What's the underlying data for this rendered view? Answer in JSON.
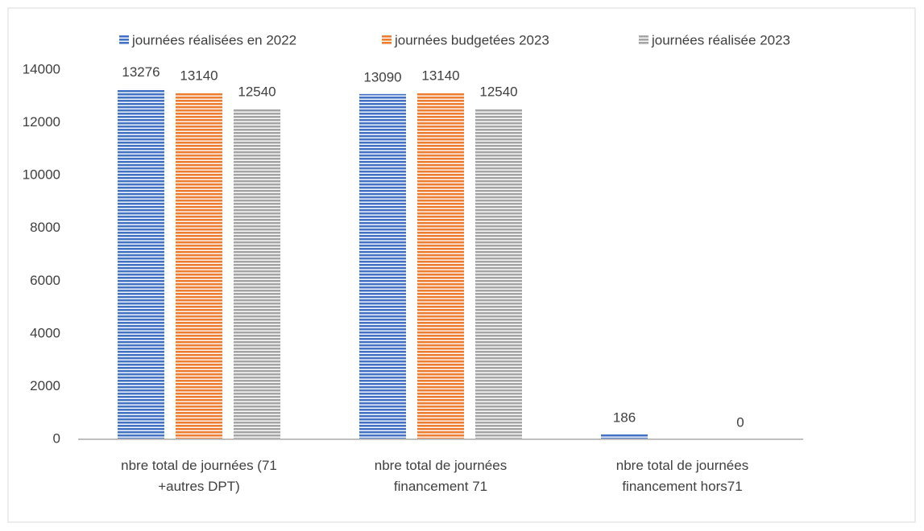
{
  "chart_data": {
    "type": "bar",
    "categories": [
      "nbre total de journées (71 +autres DPT)",
      "nbre total de journées financement 71",
      "nbre total de journées financement hors71"
    ],
    "series": [
      {
        "name": "journées réalisées en 2022",
        "color": "#4472c4",
        "values": [
          13276,
          13090,
          186
        ]
      },
      {
        "name": "journées budgetées 2023",
        "color": "#ed7d31",
        "values": [
          13140,
          13140,
          null
        ]
      },
      {
        "name": "journées réalisée 2023",
        "color": "#a5a5a5",
        "values": [
          12540,
          12540,
          0
        ]
      }
    ],
    "ylim": [
      0,
      14000
    ],
    "yticks": [
      0,
      2000,
      4000,
      6000,
      8000,
      10000,
      12000,
      14000
    ],
    "legend": "top",
    "grid": false
  }
}
